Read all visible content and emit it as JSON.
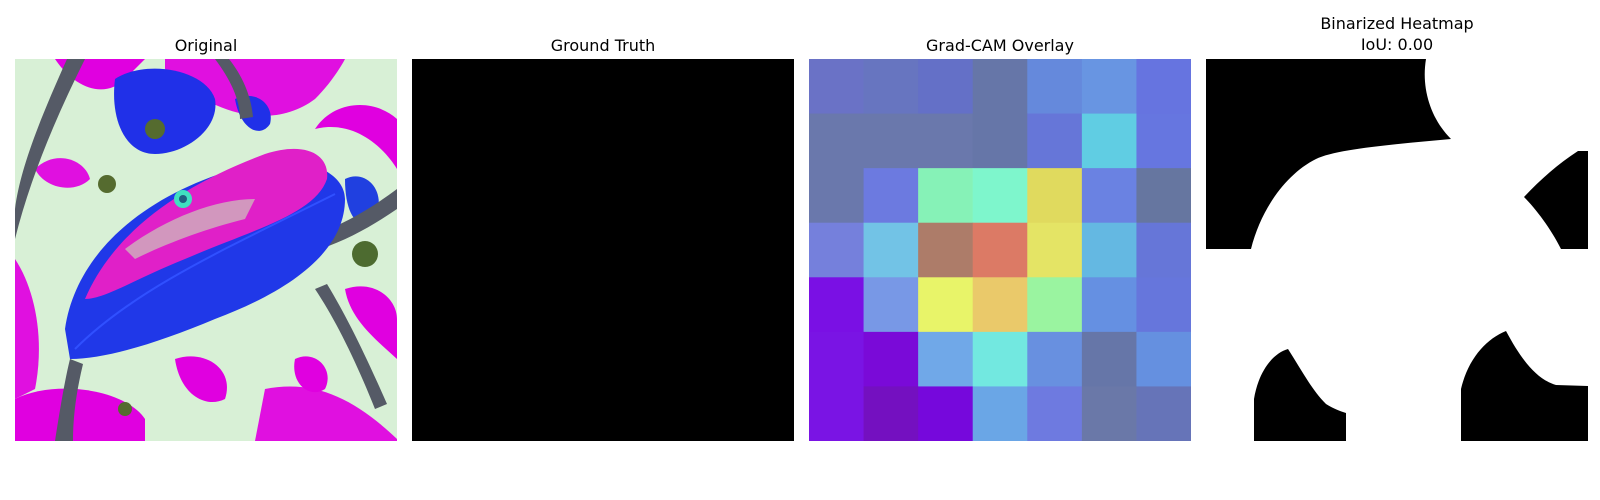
{
  "panels": [
    {
      "title": "Original"
    },
    {
      "title": "Ground Truth"
    },
    {
      "title": "Grad-CAM Overlay"
    },
    {
      "title": "Binarized Heatmap",
      "subtitle": "IoU: 0.00"
    }
  ],
  "gradcam": {
    "grid": [
      [
        "#6a72c6",
        "#6775c0",
        "#6470c7",
        "#6676a8",
        "#6589dc",
        "#6895e2",
        "#6674e0"
      ],
      [
        "#6a78ac",
        "#6a78ac",
        "#6a78ac",
        "#6676a8",
        "#6676d8",
        "#60cde3",
        "#6676e0"
      ],
      [
        "#6a78ac",
        "#6c7ae0",
        "#86f2b7",
        "#7ef6cc",
        "#e0da5e",
        "#6a82e2",
        "#6676a0"
      ],
      [
        "#7580dc",
        "#72c3e6",
        "#ad7c69",
        "#dc7a65",
        "#e4e465",
        "#64b8e2",
        "#6676d8"
      ],
      [
        "#7a10e4",
        "#7898e6",
        "#e8f469",
        "#eac96a",
        "#9af4a0",
        "#6590e2",
        "#6676dc"
      ],
      [
        "#7a14e4",
        "#7a0ad8",
        "#70a8e8",
        "#72e8e0",
        "#6890e0",
        "#6676a8",
        "#6590e0"
      ],
      [
        "#7a14e4",
        "#7410c0",
        "#7608dc",
        "#6aa6e6",
        "#6e7ae0",
        "#6a78a8",
        "#6674b8"
      ]
    ]
  }
}
